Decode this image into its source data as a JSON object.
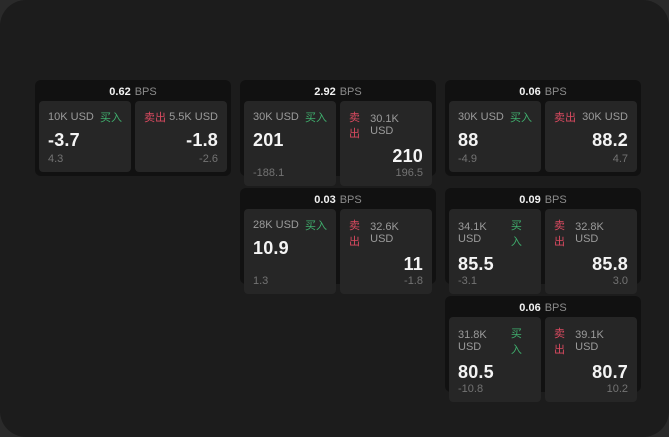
{
  "colors": {
    "page_background": "#1c1c1c",
    "outer_background": "#2a2a2a",
    "card_background": "#111111",
    "panel_background": "#262626",
    "buy_green": "#3fae6d",
    "sell_red": "#da4a60"
  },
  "cards": [
    {
      "bps_value": "0.62",
      "bps_unit": "BPS",
      "buy": {
        "notional": "10K USD",
        "side_label": "买入",
        "price": "-3.7",
        "delta": "4.3"
      },
      "sell": {
        "side_label": "卖出",
        "notional": "5.5K USD",
        "price": "-1.8",
        "delta": "-2.6"
      }
    },
    {
      "bps_value": "2.92",
      "bps_unit": "BPS",
      "buy": {
        "notional": "30K USD",
        "side_label": "买入",
        "price": "201",
        "delta": "-188.1"
      },
      "sell": {
        "side_label": "卖出",
        "notional": "30.1K USD",
        "price": "210",
        "delta": "196.5"
      }
    },
    {
      "bps_value": "0.06",
      "bps_unit": "BPS",
      "buy": {
        "notional": "30K USD",
        "side_label": "买入",
        "price": "88",
        "delta": "-4.9"
      },
      "sell": {
        "side_label": "卖出",
        "notional": "30K USD",
        "price": "88.2",
        "delta": "4.7"
      }
    },
    {
      "bps_value": "0.03",
      "bps_unit": "BPS",
      "buy": {
        "notional": "28K USD",
        "side_label": "买入",
        "price": "10.9",
        "delta": "1.3"
      },
      "sell": {
        "side_label": "卖出",
        "notional": "32.6K USD",
        "price": "11",
        "delta": "-1.8"
      }
    },
    {
      "bps_value": "0.09",
      "bps_unit": "BPS",
      "buy": {
        "notional": "34.1K USD",
        "side_label": "买入",
        "price": "85.5",
        "delta": "-3.1"
      },
      "sell": {
        "side_label": "卖出",
        "notional": "32.8K USD",
        "price": "85.8",
        "delta": "3.0"
      }
    },
    {
      "bps_value": "0.06",
      "bps_unit": "BPS",
      "buy": {
        "notional": "31.8K USD",
        "side_label": "买入",
        "price": "80.5",
        "delta": "-10.8"
      },
      "sell": {
        "side_label": "卖出",
        "notional": "39.1K USD",
        "price": "80.7",
        "delta": "10.2"
      }
    }
  ]
}
